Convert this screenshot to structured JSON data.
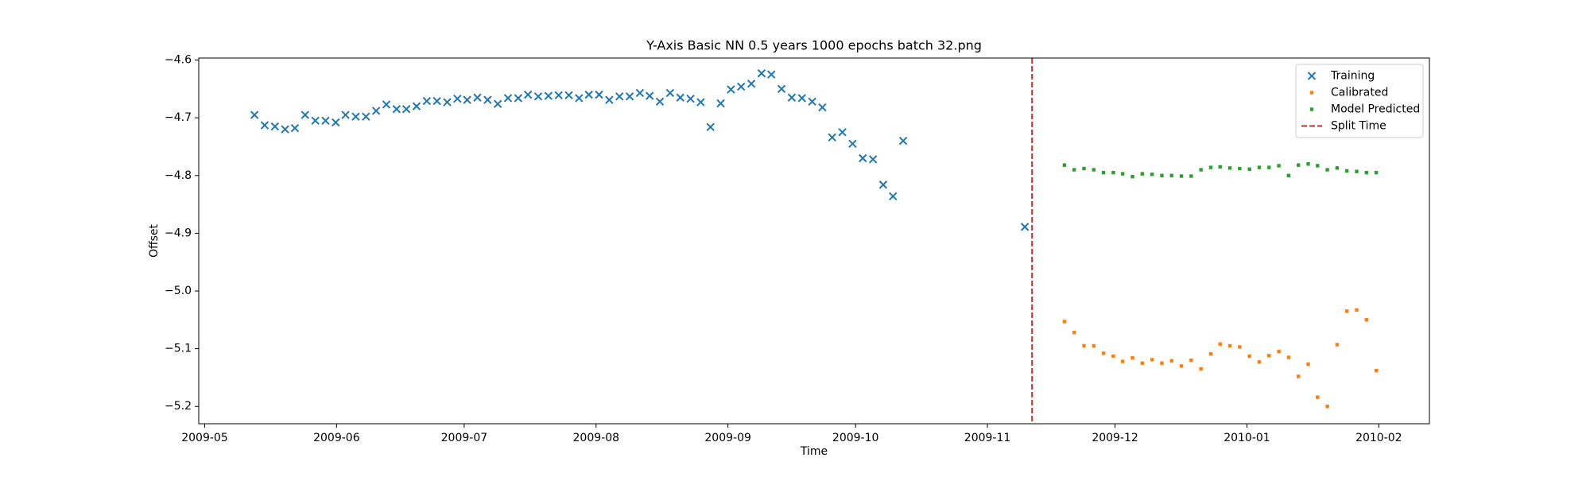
{
  "chart_data": {
    "type": "scatter",
    "title": "Y-Axis Basic NN 0.5 years 1000 epochs batch 32.png",
    "xlabel": "Time",
    "ylabel": "Offset",
    "xlim": [
      14363.6,
      14652.9
    ],
    "ylim": [
      -5.23,
      -4.5965
    ],
    "xticks": [
      {
        "value": 14365,
        "label": "2009-05"
      },
      {
        "value": 14396,
        "label": "2009-06"
      },
      {
        "value": 14426,
        "label": "2009-07"
      },
      {
        "value": 14457,
        "label": "2009-08"
      },
      {
        "value": 14488,
        "label": "2009-09"
      },
      {
        "value": 14518,
        "label": "2009-10"
      },
      {
        "value": 14549,
        "label": "2009-11"
      },
      {
        "value": 14579,
        "label": "2009-12"
      },
      {
        "value": 14610,
        "label": "2010-01"
      },
      {
        "value": 14641,
        "label": "2010-02"
      }
    ],
    "yticks": [
      {
        "value": -4.6,
        "label": "−4.6"
      },
      {
        "value": -4.7,
        "label": "−4.7"
      },
      {
        "value": -4.8,
        "label": "−4.8"
      },
      {
        "value": -4.9,
        "label": "−4.9"
      },
      {
        "value": -5.0,
        "label": "−5.0"
      },
      {
        "value": -5.1,
        "label": "−5.1"
      },
      {
        "value": -5.2,
        "label": "−5.2"
      }
    ],
    "grid": false,
    "legend": "upper right",
    "series": [
      {
        "name": "Training",
        "color": "#1f77b4",
        "marker": "x",
        "x": [
          14376.7,
          14379.1,
          14381.5,
          14383.9,
          14386.2,
          14388.6,
          14391.0,
          14393.4,
          14395.8,
          14398.1,
          14400.5,
          14402.9,
          14405.3,
          14407.7,
          14410.1,
          14412.4,
          14414.8,
          14417.2,
          14419.6,
          14422.0,
          14424.4,
          14426.7,
          14429.1,
          14431.5,
          14433.9,
          14436.3,
          14438.7,
          14441.0,
          14443.4,
          14445.8,
          14448.2,
          14450.6,
          14453.0,
          14455.3,
          14457.7,
          14460.1,
          14462.5,
          14464.9,
          14467.3,
          14469.6,
          14472.0,
          14474.4,
          14476.8,
          14479.2,
          14481.6,
          14483.9,
          14486.3,
          14488.7,
          14491.1,
          14493.5,
          14495.9,
          14498.2,
          14500.6,
          14503.0,
          14505.4,
          14507.8,
          14510.2,
          14512.5,
          14514.9,
          14517.3,
          14519.7,
          14522.1,
          14524.5,
          14526.8,
          14529.2,
          14557.8
        ],
        "values": [
          -4.695,
          -4.713,
          -4.715,
          -4.72,
          -4.718,
          -4.695,
          -4.705,
          -4.705,
          -4.708,
          -4.695,
          -4.698,
          -4.698,
          -4.688,
          -4.677,
          -4.685,
          -4.685,
          -4.68,
          -4.671,
          -4.671,
          -4.673,
          -4.667,
          -4.669,
          -4.665,
          -4.669,
          -4.676,
          -4.666,
          -4.666,
          -4.66,
          -4.663,
          -4.662,
          -4.661,
          -4.661,
          -4.666,
          -4.66,
          -4.66,
          -4.669,
          -4.663,
          -4.663,
          -4.657,
          -4.662,
          -4.672,
          -4.657,
          -4.665,
          -4.667,
          -4.673,
          -4.716,
          -4.675,
          -4.651,
          -4.646,
          -4.641,
          -4.623,
          -4.625,
          -4.65,
          -4.665,
          -4.666,
          -4.672,
          -4.682,
          -4.734,
          -4.725,
          -4.745,
          -4.77,
          -4.772,
          -4.816,
          -4.836,
          -4.74,
          -4.889
        ]
      },
      {
        "name": "Calibrated",
        "color": "#ff7f0e",
        "marker": "o",
        "x": [
          14567.1,
          14569.4,
          14571.7,
          14574.0,
          14576.3,
          14578.6,
          14580.8,
          14583.1,
          14585.4,
          14587.7,
          14590.0,
          14592.3,
          14594.6,
          14596.9,
          14599.2,
          14601.5,
          14603.7,
          14606.0,
          14608.3,
          14610.6,
          14612.9,
          14615.2,
          14617.5,
          14619.8,
          14622.1,
          14624.4,
          14626.6,
          14628.9,
          14631.2,
          14633.5,
          14635.8,
          14638.1,
          14640.4
        ],
        "values": [
          -5.053,
          -5.072,
          -5.095,
          -5.095,
          -5.108,
          -5.113,
          -5.122,
          -5.116,
          -5.125,
          -5.119,
          -5.125,
          -5.121,
          -5.13,
          -5.12,
          -5.135,
          -5.109,
          -5.092,
          -5.095,
          -5.097,
          -5.113,
          -5.123,
          -5.112,
          -5.105,
          -5.115,
          -5.148,
          -5.127,
          -5.184,
          -5.2,
          -5.093,
          -5.035,
          -5.033,
          -5.05,
          -5.138
        ]
      },
      {
        "name": "Model Predicted",
        "color": "#2ca02c",
        "marker": "o",
        "x": [
          14567.1,
          14569.4,
          14571.7,
          14574.0,
          14576.3,
          14578.6,
          14580.8,
          14583.1,
          14585.4,
          14587.7,
          14590.0,
          14592.3,
          14594.6,
          14596.9,
          14599.2,
          14601.5,
          14603.7,
          14606.0,
          14608.3,
          14610.6,
          14612.9,
          14615.2,
          14617.5,
          14619.8,
          14622.1,
          14624.4,
          14626.6,
          14628.9,
          14631.2,
          14633.5,
          14635.8,
          14638.1,
          14640.4
        ],
        "values": [
          -4.782,
          -4.79,
          -4.788,
          -4.79,
          -4.795,
          -4.795,
          -4.797,
          -4.802,
          -4.797,
          -4.798,
          -4.8,
          -4.8,
          -4.801,
          -4.801,
          -4.79,
          -4.786,
          -4.785,
          -4.787,
          -4.788,
          -4.789,
          -4.786,
          -4.786,
          -4.783,
          -4.8,
          -4.782,
          -4.78,
          -4.783,
          -4.79,
          -4.787,
          -4.792,
          -4.793,
          -4.795,
          -4.795
        ]
      },
      {
        "name": "Split Time",
        "color": "#d62728",
        "marker": "vline",
        "linestyle": "dashed",
        "x": 14559.5
      }
    ]
  }
}
